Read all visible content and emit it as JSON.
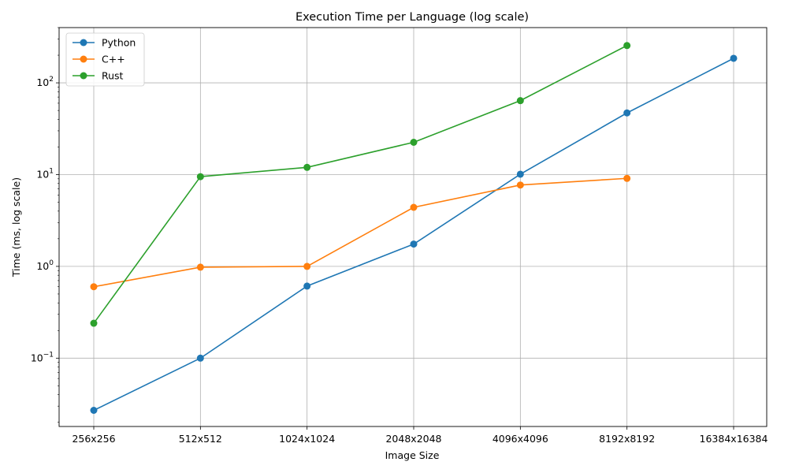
{
  "chart_data": {
    "type": "line",
    "title": "Execution Time per Language (log scale)",
    "xlabel": "Image Size",
    "ylabel": "Time (ms, log scale)",
    "yscale": "log",
    "ylim": [
      0.018,
      400
    ],
    "y_ticks": [
      {
        "value": 0.1,
        "base": "10",
        "exp": "−1"
      },
      {
        "value": 1,
        "base": "10",
        "exp": "0"
      },
      {
        "value": 10,
        "base": "10",
        "exp": "1"
      },
      {
        "value": 100,
        "base": "10",
        "exp": "2"
      }
    ],
    "categories": [
      "256x256",
      "512x512",
      "1024x1024",
      "2048x2048",
      "4096x4096",
      "8192x8192",
      "16384x16384"
    ],
    "grid": true,
    "legend_position": "top-left",
    "series": [
      {
        "name": "Python",
        "color": "#1f77b4",
        "values": [
          0.027,
          0.1,
          0.61,
          1.75,
          10.1,
          47,
          185
        ]
      },
      {
        "name": "C++",
        "color": "#ff7f0e",
        "values": [
          0.6,
          0.98,
          1.0,
          4.4,
          7.7,
          9.1,
          null
        ]
      },
      {
        "name": "Rust",
        "color": "#2ca02c",
        "values": [
          0.24,
          9.5,
          12,
          22.5,
          64,
          255,
          null
        ]
      }
    ]
  }
}
